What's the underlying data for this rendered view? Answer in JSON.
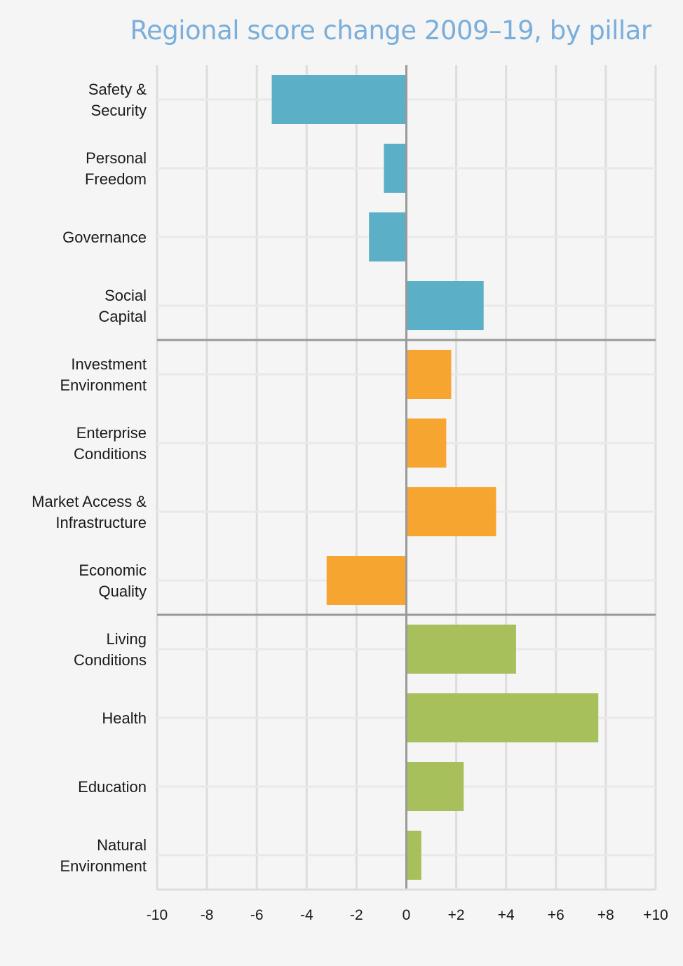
{
  "chart_data": {
    "type": "bar",
    "orientation": "horizontal",
    "title": "Regional score change 2009–19, by pillar",
    "xlabel": "",
    "ylabel": "",
    "xlim": [
      -10,
      10
    ],
    "xticks": [
      -10,
      -8,
      -6,
      -4,
      -2,
      0,
      2,
      4,
      6,
      8,
      10
    ],
    "xtick_labels": [
      "-10",
      "-8",
      "-6",
      "-4",
      "-2",
      "0",
      "+2",
      "+4",
      "+6",
      "+8",
      "+10"
    ],
    "grid": true,
    "groups": [
      {
        "color": "#5bafc6",
        "categories": [
          {
            "lines": [
              "Safety &",
              "Security"
            ],
            "value": -5.4
          },
          {
            "lines": [
              "Personal",
              "Freedom"
            ],
            "value": -0.9
          },
          {
            "lines": [
              "Governance"
            ],
            "value": -1.5
          },
          {
            "lines": [
              "Social",
              "Capital"
            ],
            "value": 3.1
          }
        ]
      },
      {
        "color": "#f6a530",
        "categories": [
          {
            "lines": [
              "Investment",
              "Environment"
            ],
            "value": 1.8
          },
          {
            "lines": [
              "Enterprise",
              "Conditions"
            ],
            "value": 1.6
          },
          {
            "lines": [
              "Market Access &",
              "Infrastructure"
            ],
            "value": 3.6
          },
          {
            "lines": [
              "Economic",
              "Quality"
            ],
            "value": -3.2
          }
        ]
      },
      {
        "color": "#a8c05c",
        "categories": [
          {
            "lines": [
              "Living",
              "Conditions"
            ],
            "value": 4.4
          },
          {
            "lines": [
              "Health"
            ],
            "value": 7.7
          },
          {
            "lines": [
              "Education"
            ],
            "value": 2.3
          },
          {
            "lines": [
              "Natural",
              "Environment"
            ],
            "value": 0.6
          }
        ]
      }
    ]
  }
}
